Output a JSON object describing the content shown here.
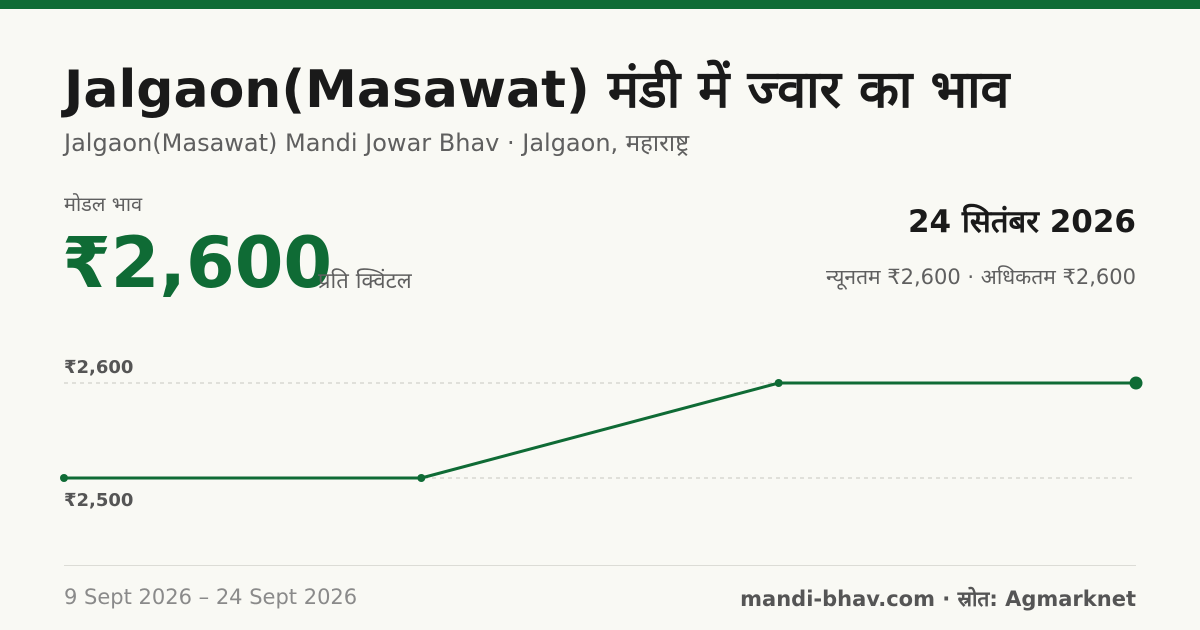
{
  "header": {
    "title": "Jalgaon(Masawat) मंडी में ज्वार का भाव",
    "subtitle": "Jalgaon(Masawat) Mandi Jowar Bhav · Jalgaon, महाराष्ट्र"
  },
  "price": {
    "label": "मोडल भाव",
    "value": "₹2,600",
    "unit": "प्रति क्विंटल"
  },
  "date": "24 सितंबर 2026",
  "minmax": "न्यूनतम ₹2,600 · अधिकतम ₹2,600",
  "footer": {
    "range": "9 Sept 2026 – 24 Sept 2026",
    "source": "mandi-bhav.com · स्रोत: Agmarknet"
  },
  "colors": {
    "accent": "#0f6b35",
    "gridline": "#c8c8c0"
  },
  "chart_data": {
    "type": "line",
    "x": [
      "9 Sept 2026",
      "",
      "",
      "24 Sept 2026"
    ],
    "series": [
      {
        "values": [
          2500,
          2500,
          2600,
          2600
        ]
      }
    ],
    "yticks": [
      {
        "value": 2600,
        "label": "₹2,600"
      },
      {
        "value": 2500,
        "label": "₹2,500"
      }
    ],
    "ylim": [
      2500,
      2600
    ],
    "grid": true,
    "title": "",
    "xlabel": "",
    "ylabel": ""
  }
}
